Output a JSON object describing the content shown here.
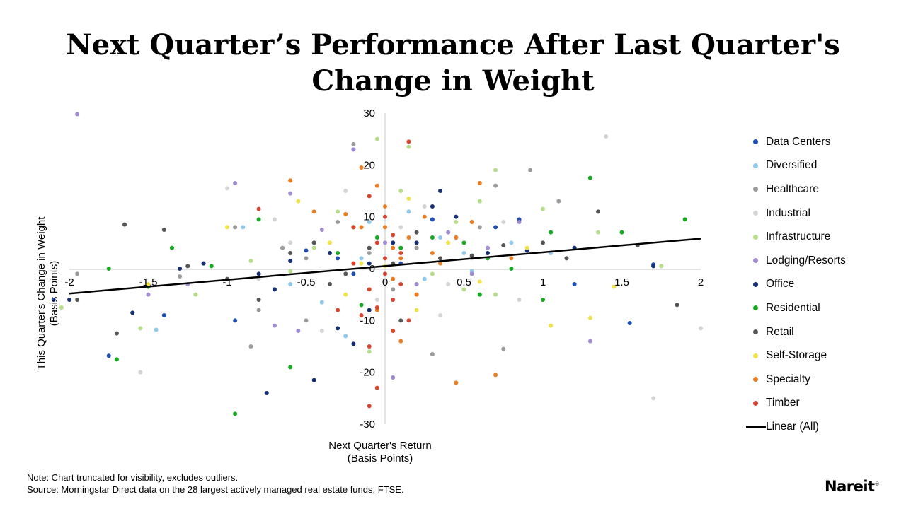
{
  "title_lines": [
    "Next Quarter’s Performance After Last Quarter's",
    "Change in Weight"
  ],
  "notes": {
    "note": "Note: Chart truncated for visibility, excludes outliers.",
    "source": "Source: Morningstar Direct data on the 28 largest actively managed real estate funds, FTSE."
  },
  "logo": {
    "text": "Nareit",
    "mark": "®"
  },
  "chart_data": {
    "type": "scatter",
    "xlabel": [
      "Next Quarter's Return",
      "(Basis Points)"
    ],
    "ylabel": [
      "This Quarter's Change in Weight",
      "(Basis Points)"
    ],
    "xlim": [
      -2,
      2
    ],
    "ylim": [
      -30,
      30
    ],
    "x_ticks": [
      "-2",
      "-1.5",
      "-1",
      "-0.5",
      "0",
      "0.5",
      "1",
      "1.5",
      "2"
    ],
    "y_ticks": [
      "30",
      "20",
      "10",
      "0",
      "-10",
      "-20",
      "-30"
    ],
    "grid": false,
    "legend_position": "right",
    "trendline": {
      "name": "Linear (All)",
      "color": "#000000",
      "from": [
        -2,
        -4.8
      ],
      "to": [
        2,
        5.8
      ]
    },
    "series": [
      {
        "name": "Data Centers",
        "color": "#1f4fb4",
        "points": [
          [
            -2.1,
            -6
          ],
          [
            -1.75,
            -16.8
          ],
          [
            -1.4,
            -9
          ],
          [
            -0.95,
            -10
          ],
          [
            -0.7,
            -4
          ],
          [
            -0.5,
            3.5
          ],
          [
            -0.3,
            2
          ],
          [
            -0.2,
            -1
          ],
          [
            0.1,
            1
          ],
          [
            0.3,
            9.5
          ],
          [
            0.7,
            8
          ],
          [
            0.85,
            9.5
          ],
          [
            1.2,
            -3
          ],
          [
            1.55,
            -10.5
          ],
          [
            1.7,
            0.8
          ]
        ]
      },
      {
        "name": "Diversified",
        "color": "#8ec9ea",
        "points": [
          [
            -1.45,
            -11.8
          ],
          [
            -0.6,
            -3
          ],
          [
            -0.4,
            -6.5
          ],
          [
            -0.25,
            -13
          ],
          [
            -0.15,
            2
          ],
          [
            0.05,
            5
          ],
          [
            0.15,
            11
          ],
          [
            0.35,
            6
          ],
          [
            0.5,
            3
          ],
          [
            0.55,
            -0.5
          ],
          [
            0.8,
            5
          ],
          [
            1.05,
            3
          ],
          [
            -0.9,
            8
          ],
          [
            0.25,
            -2
          ],
          [
            -0.1,
            9
          ]
        ]
      },
      {
        "name": "Healthcare",
        "color": "#9a9a9a",
        "points": [
          [
            -1.95,
            -1
          ],
          [
            -1.3,
            -1.5
          ],
          [
            -0.95,
            8
          ],
          [
            -0.8,
            -8
          ],
          [
            -0.65,
            4
          ],
          [
            -0.5,
            2
          ],
          [
            -0.3,
            9
          ],
          [
            -0.1,
            3
          ],
          [
            0.05,
            -4
          ],
          [
            0.2,
            4
          ],
          [
            0.45,
            6
          ],
          [
            0.6,
            8
          ],
          [
            0.7,
            16
          ],
          [
            0.92,
            19
          ],
          [
            1.1,
            13
          ],
          [
            -0.85,
            -15
          ],
          [
            -0.5,
            -10
          ],
          [
            0.3,
            -16.5
          ],
          [
            0.75,
            -15.5
          ],
          [
            -0.2,
            24
          ]
        ]
      },
      {
        "name": "Industrial",
        "color": "#d4d4d4",
        "points": [
          [
            -1.55,
            -20
          ],
          [
            -1.0,
            15.5
          ],
          [
            -0.8,
            -2
          ],
          [
            -0.6,
            5
          ],
          [
            -0.4,
            -12
          ],
          [
            -0.25,
            15
          ],
          [
            -0.05,
            -6
          ],
          [
            0.1,
            8
          ],
          [
            0.25,
            12
          ],
          [
            0.35,
            -9
          ],
          [
            0.55,
            2
          ],
          [
            0.75,
            9
          ],
          [
            1.4,
            25.5
          ],
          [
            1.7,
            -25
          ],
          [
            2.0,
            -11.5
          ],
          [
            0.4,
            -3
          ],
          [
            0.85,
            -6
          ],
          [
            -0.7,
            9.5
          ]
        ]
      },
      {
        "name": "Infrastructure",
        "color": "#b5dd8a",
        "points": [
          [
            -2.05,
            -7.5
          ],
          [
            -1.55,
            -11.5
          ],
          [
            -1.2,
            -5
          ],
          [
            -0.85,
            1.5
          ],
          [
            -0.45,
            4
          ],
          [
            -0.3,
            11
          ],
          [
            -0.05,
            25
          ],
          [
            0.1,
            15
          ],
          [
            0.3,
            -1
          ],
          [
            0.45,
            9
          ],
          [
            0.6,
            13
          ],
          [
            0.7,
            19
          ],
          [
            1.0,
            11.5
          ],
          [
            1.35,
            7
          ],
          [
            1.75,
            0.5
          ],
          [
            0.7,
            -5
          ],
          [
            -0.1,
            -16
          ],
          [
            0.15,
            23.5
          ],
          [
            -0.6,
            -0.5
          ],
          [
            0.5,
            -4
          ]
        ]
      },
      {
        "name": "Lodging/Resorts",
        "color": "#a08bd0",
        "points": [
          [
            -1.95,
            29.8
          ],
          [
            -1.5,
            -5
          ],
          [
            -0.95,
            16.5
          ],
          [
            -0.7,
            -11
          ],
          [
            -0.6,
            14.5
          ],
          [
            -0.4,
            7.5
          ],
          [
            -0.2,
            23
          ],
          [
            0.0,
            5
          ],
          [
            0.2,
            -3
          ],
          [
            0.35,
            2
          ],
          [
            0.55,
            -1
          ],
          [
            0.85,
            9
          ],
          [
            1.3,
            -14
          ],
          [
            0.05,
            -21
          ],
          [
            -0.55,
            -12
          ],
          [
            0.65,
            4
          ],
          [
            -1.25,
            -3
          ],
          [
            0.4,
            7
          ]
        ]
      },
      {
        "name": "Office",
        "color": "#152f72",
        "points": [
          [
            -2,
            -6
          ],
          [
            -1.6,
            -8.5
          ],
          [
            -1.3,
            0
          ],
          [
            -1.15,
            1
          ],
          [
            -0.8,
            -1
          ],
          [
            -0.7,
            -4
          ],
          [
            -0.6,
            1.5
          ],
          [
            -0.45,
            -21.5
          ],
          [
            -0.35,
            3
          ],
          [
            -0.3,
            -11.5
          ],
          [
            -0.2,
            -14.5
          ],
          [
            -0.1,
            1
          ],
          [
            0.05,
            5
          ],
          [
            0.3,
            12
          ],
          [
            0.45,
            10
          ],
          [
            0.65,
            3
          ],
          [
            0.9,
            3.5
          ],
          [
            1.2,
            4
          ],
          [
            1.7,
            0.5
          ],
          [
            -0.75,
            -24
          ],
          [
            -0.1,
            -8
          ],
          [
            0.2,
            5
          ],
          [
            0.35,
            15
          ]
        ]
      },
      {
        "name": "Residential",
        "color": "#19a821",
        "points": [
          [
            -1.75,
            0
          ],
          [
            -1.5,
            -3.5
          ],
          [
            -1.35,
            4
          ],
          [
            -1.1,
            0.5
          ],
          [
            -0.95,
            -28
          ],
          [
            -0.8,
            9.5
          ],
          [
            -0.6,
            -19
          ],
          [
            -0.45,
            5
          ],
          [
            -0.3,
            3
          ],
          [
            -0.2,
            8
          ],
          [
            -0.05,
            6
          ],
          [
            0.1,
            4
          ],
          [
            0.3,
            6
          ],
          [
            0.5,
            5
          ],
          [
            0.65,
            2
          ],
          [
            0.8,
            0
          ],
          [
            1.0,
            -6
          ],
          [
            1.05,
            7
          ],
          [
            1.3,
            17.5
          ],
          [
            1.5,
            7
          ],
          [
            1.9,
            9.5
          ],
          [
            -1.7,
            -17.5
          ],
          [
            0.6,
            -5
          ],
          [
            -0.15,
            -7
          ]
        ]
      },
      {
        "name": "Retail",
        "color": "#555555",
        "points": [
          [
            -1.95,
            -6
          ],
          [
            -1.7,
            -12.5
          ],
          [
            -1.65,
            8.5
          ],
          [
            -1.4,
            7.5
          ],
          [
            -1.25,
            0.5
          ],
          [
            -1.0,
            -2
          ],
          [
            -0.8,
            -6
          ],
          [
            -0.6,
            3
          ],
          [
            -0.45,
            5
          ],
          [
            -0.25,
            -1
          ],
          [
            -0.1,
            4
          ],
          [
            0.05,
            1
          ],
          [
            0.2,
            7
          ],
          [
            0.35,
            2
          ],
          [
            0.55,
            2.5
          ],
          [
            0.75,
            4.5
          ],
          [
            1.0,
            5
          ],
          [
            1.15,
            2
          ],
          [
            1.35,
            11
          ],
          [
            1.6,
            4.5
          ],
          [
            1.85,
            -7
          ],
          [
            0.1,
            -10
          ],
          [
            -0.35,
            -3
          ]
        ]
      },
      {
        "name": "Self-Storage",
        "color": "#f0e24a",
        "points": [
          [
            -1.5,
            -3
          ],
          [
            -1.0,
            8
          ],
          [
            -0.55,
            13
          ],
          [
            -0.35,
            5
          ],
          [
            -0.15,
            1
          ],
          [
            0.0,
            0.5
          ],
          [
            0.15,
            13.5
          ],
          [
            0.4,
            5
          ],
          [
            0.6,
            -2.5
          ],
          [
            0.9,
            4
          ],
          [
            1.05,
            -11
          ],
          [
            1.3,
            -9.5
          ],
          [
            1.45,
            -3.5
          ],
          [
            -0.25,
            -5
          ],
          [
            0.2,
            -8
          ]
        ]
      },
      {
        "name": "Specialty",
        "color": "#e87d24",
        "points": [
          [
            -0.6,
            17
          ],
          [
            -0.45,
            11
          ],
          [
            -0.25,
            10.5
          ],
          [
            -0.15,
            19.5
          ],
          [
            -0.05,
            16
          ],
          [
            0.0,
            12
          ],
          [
            0.0,
            8
          ],
          [
            0.05,
            4
          ],
          [
            0.05,
            -2
          ],
          [
            0.1,
            2
          ],
          [
            0.15,
            6
          ],
          [
            0.25,
            10
          ],
          [
            0.35,
            1
          ],
          [
            0.45,
            6
          ],
          [
            0.55,
            9
          ],
          [
            0.6,
            16.5
          ],
          [
            0.8,
            2
          ],
          [
            0.45,
            -22
          ],
          [
            0.7,
            -20.5
          ],
          [
            0.1,
            -14
          ],
          [
            0.3,
            3
          ],
          [
            -0.05,
            -8
          ],
          [
            -0.15,
            8
          ],
          [
            0.2,
            -5
          ]
        ]
      },
      {
        "name": "Timber",
        "color": "#d8452f",
        "points": [
          [
            -0.8,
            11.5
          ],
          [
            -0.2,
            8
          ],
          [
            -0.1,
            14
          ],
          [
            0.0,
            10
          ],
          [
            -0.05,
            5
          ],
          [
            0.0,
            2
          ],
          [
            0.0,
            -1
          ],
          [
            -0.1,
            -4
          ],
          [
            -0.05,
            -7.5
          ],
          [
            0.05,
            -12
          ],
          [
            -0.1,
            -15
          ],
          [
            -0.05,
            -23
          ],
          [
            -0.1,
            -26.5
          ],
          [
            0.15,
            24.5
          ],
          [
            0.05,
            6.5
          ],
          [
            0.1,
            3
          ],
          [
            -0.15,
            -9
          ],
          [
            0.1,
            -3
          ],
          [
            -0.2,
            1
          ],
          [
            0.05,
            -6
          ],
          [
            -0.3,
            -8
          ],
          [
            0.15,
            -10
          ]
        ]
      }
    ]
  }
}
